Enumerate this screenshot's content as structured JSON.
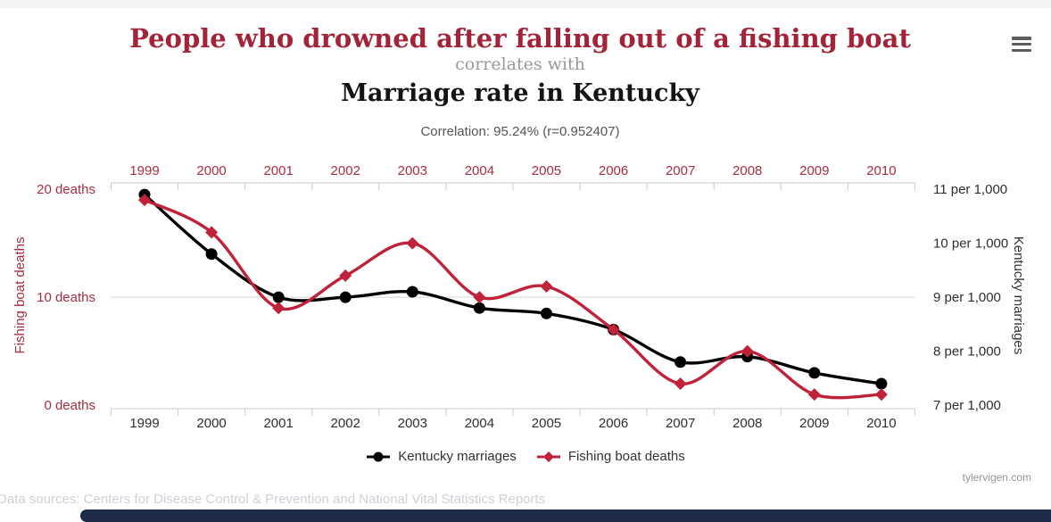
{
  "page": {
    "header": {
      "title_red": "People who drowned after falling out of a fishing boat",
      "connector": "correlates with",
      "title_black": "Marriage rate in Kentucky",
      "correlation": "Correlation: 95.24% (r=0.952407)",
      "menu_icon": "hamburger-menu-icon"
    },
    "footer": {
      "watermark": "tylervigen.com",
      "data_sources": "Data sources: Centers for Disease Control & Prevention and National Vital Statistics Reports"
    }
  },
  "chart_data": {
    "type": "line",
    "title": "People who drowned after falling out of a fishing boat correlates with Marriage rate in Kentucky",
    "x": [
      1999,
      2000,
      2001,
      2002,
      2003,
      2004,
      2005,
      2006,
      2007,
      2008,
      2009,
      2010
    ],
    "series": [
      {
        "name": "Kentucky marriages",
        "axis": "right",
        "color": "#000000",
        "marker": "circle",
        "units": "per 1,000",
        "values": [
          10.9,
          9.8,
          9.0,
          9.0,
          9.1,
          8.8,
          8.7,
          8.4,
          7.8,
          7.9,
          7.6,
          7.4
        ]
      },
      {
        "name": "Fishing boat deaths",
        "axis": "left",
        "color": "#bf2239",
        "marker": "diamond",
        "units": "deaths",
        "values": [
          19,
          16,
          9,
          12,
          15,
          10,
          11,
          7,
          2,
          5,
          1,
          1
        ]
      }
    ],
    "left_axis": {
      "title": "Fishing boat deaths",
      "tick_values": [
        20,
        10,
        0
      ],
      "tick_labels": [
        "20 deaths",
        "10 deaths",
        "0 deaths"
      ],
      "range": [
        0,
        20.6
      ],
      "color": "#a52e40"
    },
    "right_axis": {
      "title": "Kentucky marriages",
      "tick_values": [
        11,
        10,
        9,
        8,
        7
      ],
      "tick_labels": [
        "11 per 1,000",
        "10 per 1,000",
        "9 per 1,000",
        "8 per 1,000",
        "7 per 1,000"
      ],
      "range": [
        7,
        11.12
      ],
      "color": "#2e2e2e"
    },
    "top_axis_years_color": "#a52e40",
    "bottom_axis_years_color": "#2e2e2e",
    "grid": {
      "lines_at_right_axis_values": [
        9
      ]
    },
    "legend_position": "bottom",
    "smooth": true
  },
  "legend": {
    "items": [
      {
        "label": "Kentucky marriages",
        "marker": "circle",
        "color": "#000000"
      },
      {
        "label": "Fishing boat deaths",
        "marker": "diamond",
        "color": "#bf2239"
      }
    ]
  },
  "colors": {
    "title_red": "#a32339",
    "line_red": "#bf2239",
    "connector_gray": "#999999",
    "correlation_gray": "#555555",
    "footer_bar_navy": "#1d2b49",
    "data_sources_gray": "#ccd1d9",
    "watermark_gray": "#8f949b",
    "axis_line": "#c9c9c9",
    "grid_line": "#dddddd"
  }
}
